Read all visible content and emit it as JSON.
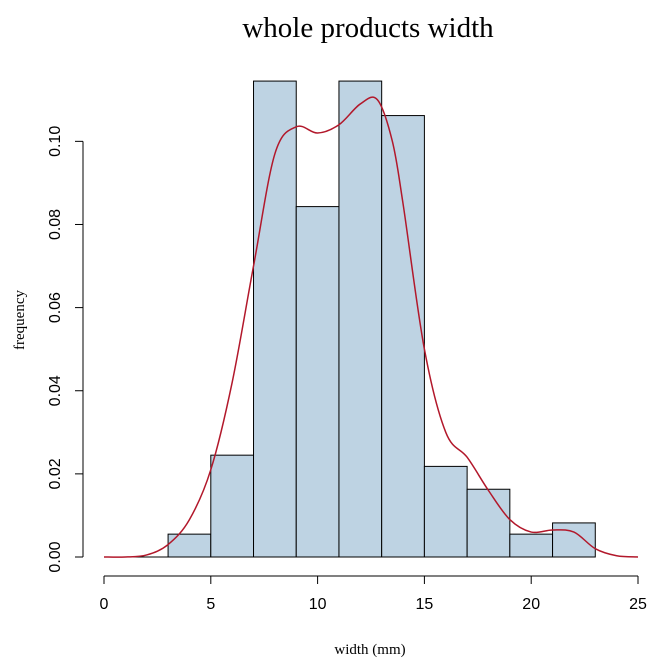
{
  "chart_data": {
    "type": "histogram",
    "title": "whole products width",
    "xlabel": "width (mm)",
    "ylabel": "frequency",
    "xlim": [
      0,
      25
    ],
    "ylim": [
      0,
      0.115
    ],
    "x_ticks": [
      "0",
      "5",
      "10",
      "15",
      "20",
      "25"
    ],
    "y_ticks": [
      "0.00",
      "0.02",
      "0.04",
      "0.06",
      "0.08",
      "0.10"
    ],
    "bins": [
      {
        "x0": 3,
        "x1": 5,
        "value": 0.0055
      },
      {
        "x0": 5,
        "x1": 7,
        "value": 0.0245
      },
      {
        "x0": 7,
        "x1": 9,
        "value": 0.1145
      },
      {
        "x0": 9,
        "x1": 11,
        "value": 0.0843
      },
      {
        "x0": 11,
        "x1": 13,
        "value": 0.1145
      },
      {
        "x0": 13,
        "x1": 15,
        "value": 0.1062
      },
      {
        "x0": 15,
        "x1": 17,
        "value": 0.0218
      },
      {
        "x0": 17,
        "x1": 19,
        "value": 0.0163
      },
      {
        "x0": 19,
        "x1": 21,
        "value": 0.0055
      },
      {
        "x0": 21,
        "x1": 23,
        "value": 0.0082
      }
    ],
    "density_curve": {
      "x": [
        0,
        1,
        2,
        3,
        4,
        5,
        6,
        7,
        8,
        9,
        10,
        11,
        12,
        12.8,
        13.5,
        14,
        15,
        16,
        17,
        18,
        19,
        20,
        21,
        22,
        23,
        24,
        25
      ],
      "y": [
        0.0,
        0.0,
        0.0005,
        0.003,
        0.009,
        0.021,
        0.042,
        0.07,
        0.097,
        0.1035,
        0.102,
        0.104,
        0.109,
        0.11,
        0.1,
        0.085,
        0.05,
        0.03,
        0.024,
        0.016,
        0.009,
        0.006,
        0.0065,
        0.006,
        0.002,
        0.0003,
        0.0
      ]
    },
    "colors": {
      "bar_fill": "#bed3e3",
      "bar_stroke": "#000000",
      "curve": "#b2182b",
      "axis": "#000000"
    },
    "grid": false
  }
}
